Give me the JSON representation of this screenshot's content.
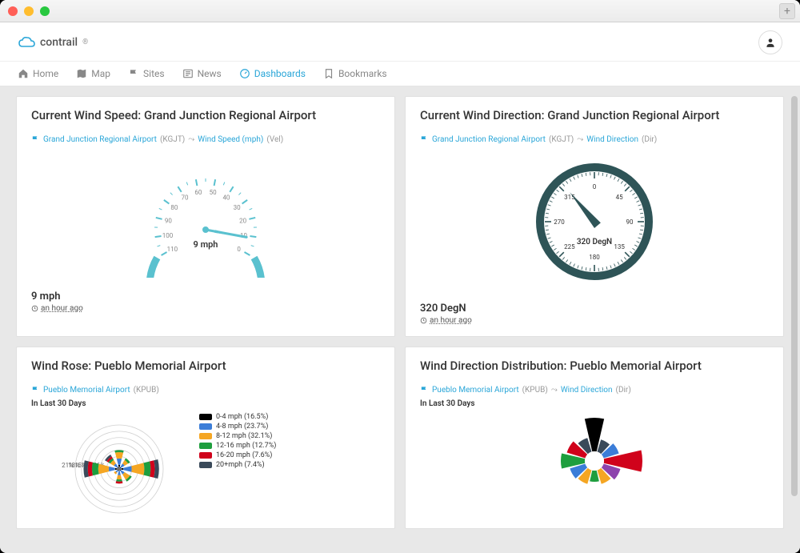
{
  "window": {
    "traffic_colors": [
      "#ff5f57",
      "#ffbd2e",
      "#28c840"
    ],
    "plus": "+"
  },
  "brand": {
    "name": "contrail",
    "mark": "®",
    "cloud_color": "#2aa6d8"
  },
  "nav": {
    "items": [
      {
        "label": "Home",
        "icon": "home",
        "active": false
      },
      {
        "label": "Map",
        "icon": "map",
        "active": false
      },
      {
        "label": "Sites",
        "icon": "flag",
        "active": false
      },
      {
        "label": "News",
        "icon": "news",
        "active": false
      },
      {
        "label": "Dashboards",
        "icon": "dashboard",
        "active": true
      },
      {
        "label": "Bookmarks",
        "icon": "bookmark",
        "active": false
      }
    ]
  },
  "cards": {
    "wind_speed": {
      "title": "Current Wind Speed: Grand Junction Regional Airport",
      "site": "Grand Junction Regional Airport",
      "site_code": "(KGJT)",
      "metric": "Wind Speed (mph)",
      "metric_code": "(Vel)",
      "gauge": {
        "type": "radial-gauge",
        "min": 0,
        "max": 110,
        "ticks": [
          0,
          10,
          20,
          30,
          40,
          50,
          60,
          70,
          80,
          90,
          100,
          110
        ],
        "value": 9,
        "unit": "mph",
        "start_angle": 210,
        "end_angle": -30,
        "arc_color": "#5ac1cf",
        "needle_color": "#5ac1cf",
        "tick_fontsize": 8,
        "label_fontsize": 11,
        "background": "#ffffff"
      },
      "reading": "9 mph",
      "timestamp": "an hour ago"
    },
    "wind_dir": {
      "title": "Current Wind Direction: Grand Junction Regional Airport",
      "site": "Grand Junction Regional Airport",
      "site_code": "(KGJT)",
      "metric": "Wind Direction",
      "metric_code": "(Dir)",
      "compass": {
        "type": "compass-gauge",
        "labels": [
          0,
          45,
          90,
          135,
          180,
          225,
          270,
          315
        ],
        "value_deg": 320,
        "value_text": "320 DegN",
        "ring_color": "#2e5457",
        "needle_color": "#2e5457",
        "tick_fontsize": 8,
        "label_fontsize": 10,
        "background": "#ffffff"
      },
      "reading": "320 DegN",
      "timestamp": "an hour ago"
    },
    "wind_rose": {
      "title": "Wind Rose: Pueblo Memorial Airport",
      "site": "Pueblo Memorial Airport",
      "site_code": "(KPUB)",
      "period": "In Last 30 Days",
      "rose": {
        "type": "wind-rose",
        "ring_pcts": [
          6,
          9,
          12,
          15,
          18,
          21
        ],
        "ring_color": "#cfcfcf",
        "legend": [
          {
            "label": "0-4 mph (16.5%)",
            "color": "#000000"
          },
          {
            "label": "4-8 mph (23.7%)",
            "color": "#3b7dd8"
          },
          {
            "label": "8-12 mph (32.1%)",
            "color": "#f5a623"
          },
          {
            "label": "12-16 mph (12.7%)",
            "color": "#1e9e3e"
          },
          {
            "label": "16-20 mph (7.6%)",
            "color": "#d0021b"
          },
          {
            "label": "20+mph (7.4%)",
            "color": "#3a4a5a"
          }
        ],
        "bars": [
          {
            "dir": 0,
            "stack": [
              2,
              3,
              3,
              1,
              0,
              0
            ]
          },
          {
            "dir": 45,
            "stack": [
              1,
              2,
              2,
              1,
              0,
              0
            ]
          },
          {
            "dir": 90,
            "stack": [
              2,
              4,
              6,
              3,
              2,
              2
            ]
          },
          {
            "dir": 135,
            "stack": [
              1,
              2,
              3,
              1,
              0,
              0
            ]
          },
          {
            "dir": 180,
            "stack": [
              1,
              2,
              2,
              1,
              1,
              0
            ]
          },
          {
            "dir": 225,
            "stack": [
              1,
              1,
              1,
              0,
              0,
              0
            ]
          },
          {
            "dir": 270,
            "stack": [
              2,
              3,
              5,
              3,
              2,
              2
            ]
          },
          {
            "dir": 315,
            "stack": [
              1,
              2,
              2,
              1,
              1,
              1
            ]
          }
        ]
      }
    },
    "wind_dir_dist": {
      "title": "Wind Direction Distribution: Pueblo Memorial Airport",
      "site": "Pueblo Memorial Airport",
      "site_code": "(KPUB)",
      "metric": "Wind Direction",
      "metric_code": "(Dir)",
      "period": "In Last 30 Days",
      "polar": {
        "type": "polar-bar",
        "inner_radius": 12,
        "sectors": [
          {
            "dir": 0,
            "r": 42,
            "color": "#000000"
          },
          {
            "dir": 30,
            "r": 16,
            "color": "#3a4a5a"
          },
          {
            "dir": 60,
            "r": 20,
            "color": "#3b7dd8"
          },
          {
            "dir": 90,
            "r": 48,
            "color": "#d0021b"
          },
          {
            "dir": 120,
            "r": 22,
            "color": "#8e44ad"
          },
          {
            "dir": 150,
            "r": 18,
            "color": "#f5a623"
          },
          {
            "dir": 180,
            "r": 14,
            "color": "#1e9e3e"
          },
          {
            "dir": 210,
            "r": 18,
            "color": "#f5a623"
          },
          {
            "dir": 240,
            "r": 20,
            "color": "#3b7dd8"
          },
          {
            "dir": 270,
            "r": 30,
            "color": "#1e9e3e"
          },
          {
            "dir": 300,
            "r": 24,
            "color": "#d0021b"
          },
          {
            "dir": 330,
            "r": 18,
            "color": "#3a4a5a"
          }
        ],
        "background": "#ffffff"
      }
    }
  }
}
